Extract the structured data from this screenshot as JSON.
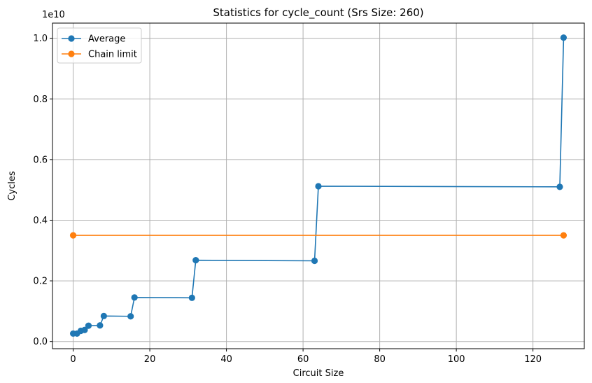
{
  "chart_data": {
    "type": "line",
    "title": "Statistics for cycle_count (Srs Size: 260)",
    "xlabel": "Circuit Size",
    "ylabel": "Cycles",
    "offset_label": "1e10",
    "xlim": [
      -5.4,
      133.4
    ],
    "ylim": [
      -238000000.0,
      10500000000.0
    ],
    "xticks": [
      0,
      20,
      40,
      60,
      80,
      100,
      120
    ],
    "xtick_labels": [
      "0",
      "20",
      "40",
      "60",
      "80",
      "100",
      "120"
    ],
    "yticks": [
      0,
      2000000000.0,
      4000000000.0,
      6000000000.0,
      8000000000.0,
      10000000000.0
    ],
    "ytick_labels": [
      "0.0",
      "0.2",
      "0.4",
      "0.6",
      "0.8",
      "1.0"
    ],
    "grid": true,
    "legend_position": "top-left",
    "series": [
      {
        "name": "Average",
        "color": "#1f77b4",
        "x": [
          0,
          1,
          2,
          3,
          4,
          7,
          8,
          15,
          16,
          31,
          32,
          63,
          64,
          127,
          128
        ],
        "y": [
          260000000.0,
          260000000.0,
          350000000.0,
          380000000.0,
          520000000.0,
          530000000.0,
          840000000.0,
          830000000.0,
          1450000000.0,
          1440000000.0,
          2680000000.0,
          2660000000.0,
          5120000000.0,
          5100000000.0,
          10020000000.0
        ]
      },
      {
        "name": "Chain limit",
        "color": "#ff7f0e",
        "x": [
          0,
          128
        ],
        "y": [
          3500000000.0,
          3500000000.0
        ]
      }
    ]
  }
}
